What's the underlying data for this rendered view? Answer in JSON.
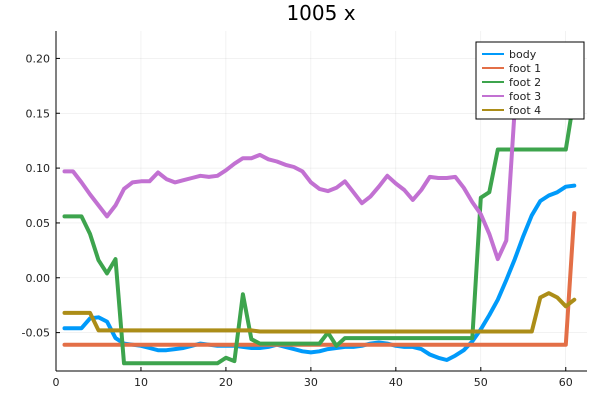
{
  "chart_data": {
    "type": "line",
    "title": "1005 x",
    "xlabel": "",
    "ylabel": "",
    "xlim": [
      0,
      62.5
    ],
    "ylim": [
      -0.085,
      0.225
    ],
    "xticks": [
      0,
      10,
      20,
      30,
      40,
      50,
      60
    ],
    "yticks": [
      -0.05,
      0.0,
      0.05,
      0.1,
      0.15,
      0.2
    ],
    "ytick_labels": [
      "-0.05",
      "0.00",
      "0.05",
      "0.10",
      "0.15",
      "0.20"
    ],
    "grid": true,
    "legend_position": "top-right",
    "x": [
      1,
      2,
      3,
      4,
      5,
      6,
      7,
      8,
      9,
      10,
      11,
      12,
      13,
      14,
      15,
      16,
      17,
      18,
      19,
      20,
      21,
      22,
      23,
      24,
      25,
      26,
      27,
      28,
      29,
      30,
      31,
      32,
      33,
      34,
      35,
      36,
      37,
      38,
      39,
      40,
      41,
      42,
      43,
      44,
      45,
      46,
      47,
      48,
      49,
      50,
      51,
      52,
      53,
      54,
      55,
      56,
      57,
      58,
      59,
      60,
      61
    ],
    "series": [
      {
        "name": "body",
        "color": "#009AFA",
        "values": [
          -0.046,
          -0.046,
          -0.046,
          -0.037,
          -0.036,
          -0.04,
          -0.055,
          -0.06,
          -0.061,
          -0.062,
          -0.064,
          -0.066,
          -0.066,
          -0.065,
          -0.064,
          -0.062,
          -0.06,
          -0.061,
          -0.062,
          -0.062,
          -0.062,
          -0.063,
          -0.064,
          -0.064,
          -0.063,
          -0.061,
          -0.063,
          -0.065,
          -0.067,
          -0.068,
          -0.067,
          -0.065,
          -0.064,
          -0.063,
          -0.063,
          -0.062,
          -0.06,
          -0.059,
          -0.06,
          -0.062,
          -0.063,
          -0.063,
          -0.065,
          -0.07,
          -0.073,
          -0.075,
          -0.071,
          -0.066,
          -0.058,
          -0.047,
          -0.034,
          -0.02,
          -0.002,
          0.017,
          0.038,
          0.057,
          0.07,
          0.075,
          0.078,
          0.083,
          0.084
        ]
      },
      {
        "name": "foot 1",
        "color": "#E36F47",
        "values": [
          -0.061,
          -0.061,
          -0.061,
          -0.061,
          -0.061,
          -0.061,
          -0.061,
          -0.061,
          -0.061,
          -0.061,
          -0.061,
          -0.061,
          -0.061,
          -0.061,
          -0.061,
          -0.061,
          -0.061,
          -0.061,
          -0.061,
          -0.061,
          -0.061,
          -0.061,
          -0.061,
          -0.061,
          -0.061,
          -0.061,
          -0.061,
          -0.061,
          -0.061,
          -0.061,
          -0.061,
          -0.061,
          -0.061,
          -0.061,
          -0.061,
          -0.061,
          -0.061,
          -0.061,
          -0.061,
          -0.061,
          -0.061,
          -0.061,
          -0.061,
          -0.061,
          -0.061,
          -0.061,
          -0.061,
          -0.061,
          -0.061,
          -0.061,
          -0.061,
          -0.061,
          -0.061,
          -0.061,
          -0.061,
          -0.061,
          -0.061,
          -0.061,
          -0.061,
          -0.061,
          0.059
        ]
      },
      {
        "name": "foot 2",
        "color": "#3DA44D",
        "values": [
          0.056,
          0.056,
          0.056,
          0.04,
          0.016,
          0.004,
          0.017,
          -0.078,
          -0.078,
          -0.078,
          -0.078,
          -0.078,
          -0.078,
          -0.078,
          -0.078,
          -0.078,
          -0.078,
          -0.078,
          -0.078,
          -0.073,
          -0.076,
          -0.015,
          -0.056,
          -0.06,
          -0.06,
          -0.06,
          -0.06,
          -0.06,
          -0.06,
          -0.06,
          -0.06,
          -0.05,
          -0.062,
          -0.055,
          -0.055,
          -0.055,
          -0.055,
          -0.055,
          -0.055,
          -0.055,
          -0.055,
          -0.055,
          -0.055,
          -0.055,
          -0.055,
          -0.055,
          -0.055,
          -0.055,
          -0.055,
          0.073,
          0.078,
          0.117,
          0.117,
          0.117,
          0.117,
          0.117,
          0.117,
          0.117,
          0.117,
          0.117,
          0.165
        ]
      },
      {
        "name": "foot 3",
        "color": "#C271D2",
        "values": [
          0.097,
          0.097,
          0.087,
          0.076,
          0.066,
          0.056,
          0.066,
          0.081,
          0.087,
          0.088,
          0.088,
          0.096,
          0.09,
          0.087,
          0.089,
          0.091,
          0.093,
          0.092,
          0.093,
          0.098,
          0.104,
          0.109,
          0.109,
          0.112,
          0.108,
          0.106,
          0.103,
          0.101,
          0.097,
          0.087,
          0.081,
          0.079,
          0.082,
          0.088,
          0.078,
          0.068,
          0.074,
          0.083,
          0.093,
          0.086,
          0.08,
          0.071,
          0.08,
          0.092,
          0.091,
          0.091,
          0.092,
          0.082,
          0.069,
          0.058,
          0.04,
          0.017,
          0.034,
          0.155,
          0.213,
          0.213,
          0.213,
          0.213,
          0.213,
          0.213,
          0.213
        ]
      },
      {
        "name": "foot 4",
        "color": "#AC8D18",
        "values": [
          -0.032,
          -0.032,
          -0.032,
          -0.032,
          -0.048,
          -0.048,
          -0.048,
          -0.048,
          -0.048,
          -0.048,
          -0.048,
          -0.048,
          -0.048,
          -0.048,
          -0.048,
          -0.048,
          -0.048,
          -0.048,
          -0.048,
          -0.048,
          -0.048,
          -0.048,
          -0.048,
          -0.049,
          -0.049,
          -0.049,
          -0.049,
          -0.049,
          -0.049,
          -0.049,
          -0.049,
          -0.049,
          -0.049,
          -0.049,
          -0.049,
          -0.049,
          -0.049,
          -0.049,
          -0.049,
          -0.049,
          -0.049,
          -0.049,
          -0.049,
          -0.049,
          -0.049,
          -0.049,
          -0.049,
          -0.049,
          -0.049,
          -0.049,
          -0.049,
          -0.049,
          -0.049,
          -0.049,
          -0.049,
          -0.049,
          -0.018,
          -0.014,
          -0.018,
          -0.026,
          -0.02
        ]
      }
    ]
  }
}
